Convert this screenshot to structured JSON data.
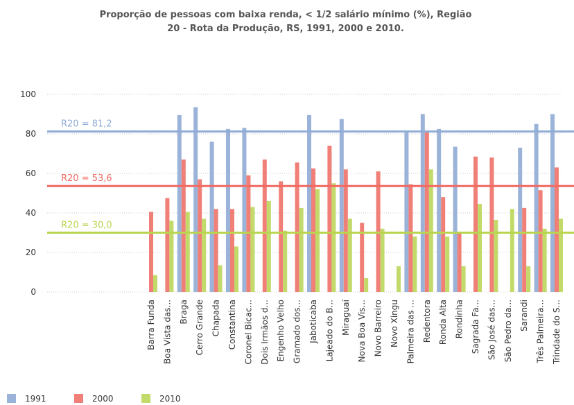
{
  "chart_data": {
    "type": "bar",
    "title": [
      "Proporção de pessoas com baixa renda, < 1/2 salário mínimo (%), Região",
      "20 - Rota da Produção, RS, 1991, 2000 e 2010."
    ],
    "categories": [
      "Barra Funda",
      "Boa Vista das...",
      "Braga",
      "Cerro Grande",
      "Chapada",
      "Constantina",
      "Coronel Bicac...",
      "Dois Irmãos d...",
      "Engenho Velho",
      "Gramado dos...",
      "Jaboticaba",
      "Lajeado do B...",
      "Miraguaí",
      "Nova Boa Vis...",
      "Novo Barreiro",
      "Novo Xingu",
      "Palmeira das ...",
      "Redentora",
      "Ronda Alta",
      "Rondinha",
      "Sagrada Fa...",
      "São José das...",
      "São Pedro da...",
      "Sarandi",
      "Três Palmeira...",
      "Trindade do S..."
    ],
    "series": [
      {
        "name": "1991",
        "color": "#9bb3d8",
        "values": [
          null,
          null,
          89.5,
          93.5,
          76,
          82.5,
          83,
          null,
          null,
          null,
          89.5,
          null,
          87.5,
          null,
          null,
          null,
          81,
          90,
          82.5,
          73.5,
          null,
          null,
          null,
          73,
          85,
          90
        ]
      },
      {
        "name": "2000",
        "color": "#f07f77",
        "values": [
          40.5,
          47.5,
          67,
          57,
          42,
          42,
          59,
          67,
          56,
          65.5,
          62.5,
          74,
          62,
          35,
          61,
          null,
          54.5,
          81,
          48,
          29.5,
          68.5,
          68,
          null,
          42.5,
          51.5,
          63
        ]
      },
      {
        "name": "2010",
        "color": "#c2da6a",
        "values": [
          8.5,
          36,
          40.5,
          37,
          13.5,
          23,
          43,
          46,
          31,
          42.5,
          52,
          55,
          37,
          7,
          32,
          13,
          28,
          62,
          28,
          13,
          44.5,
          36.5,
          42,
          13,
          32,
          37
        ]
      }
    ],
    "reference_lines": [
      {
        "value": 81.2,
        "label": "R20 = 81,2",
        "color": "#8fabd6"
      },
      {
        "value": 53.6,
        "label": "R20 = 53,6",
        "color": "#f26a62"
      },
      {
        "value": 30.0,
        "label": "R20 = 30,0",
        "color": "#b9d54f"
      }
    ],
    "ylim": [
      0,
      100
    ],
    "yticks": [
      0,
      20,
      40,
      60,
      80,
      100
    ],
    "grid": true
  }
}
